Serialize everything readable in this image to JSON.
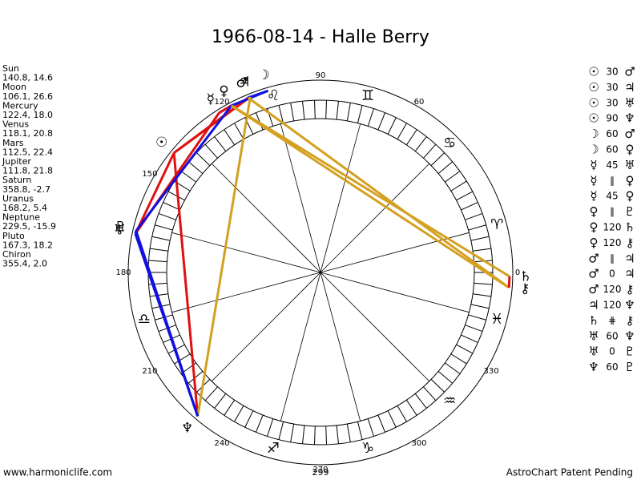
{
  "title": "1966-08-14 - Halle Berry",
  "planets": [
    {
      "name": "Sun",
      "glyph": "☉",
      "position": "140.8, 14.6"
    },
    {
      "name": "Moon",
      "glyph": "☽",
      "position": "106.1, 26.6"
    },
    {
      "name": "Mercury",
      "glyph": "☿",
      "position": "122.4, 18.0"
    },
    {
      "name": "Venus",
      "glyph": "♀",
      "position": "118.1, 20.8"
    },
    {
      "name": "Mars",
      "glyph": "♂",
      "position": "112.5, 22.4"
    },
    {
      "name": "Jupiter",
      "glyph": "♃",
      "position": "111.8, 21.8"
    },
    {
      "name": "Saturn",
      "glyph": "♄",
      "position": "358.8, -2.7"
    },
    {
      "name": "Uranus",
      "glyph": "♅",
      "position": "168.2, 5.4"
    },
    {
      "name": "Neptune",
      "glyph": "♆",
      "position": "229.5, -15.9"
    },
    {
      "name": "Pluto",
      "glyph": "♇",
      "position": "167.3, 18.2"
    },
    {
      "name": "Chiron",
      "glyph": "⚷",
      "position": "355.4, 2.0"
    }
  ],
  "zodiac_signs": [
    "♈",
    "♋",
    "♊",
    "♌",
    null,
    null,
    "♎",
    null,
    "♐",
    "♑",
    "♒",
    "♓"
  ],
  "degree_labels": [
    "0",
    null,
    "60",
    "90",
    "120",
    "150",
    "180",
    "210",
    "240",
    "270",
    "300",
    "330"
  ],
  "bottom_label": "299",
  "aspects": [
    {
      "from": "☉",
      "aspect": "30",
      "to": "♂",
      "color": "#e01010"
    },
    {
      "from": "☉",
      "aspect": "30",
      "to": "♃",
      "color": "#e01010"
    },
    {
      "from": "☉",
      "aspect": "30",
      "to": "♅",
      "color": "#e01010"
    },
    {
      "from": "☉",
      "aspect": "90",
      "to": "♆",
      "color": "#e01010"
    },
    {
      "from": "☽",
      "aspect": "60",
      "to": "♂",
      "color": "#1010e0"
    },
    {
      "from": "☽",
      "aspect": "60",
      "to": "♀",
      "color": "#1010e0"
    },
    {
      "from": "☿",
      "aspect": "45",
      "to": "♅",
      "color": "#e01010"
    },
    {
      "from": "☿",
      "aspect": "∥",
      "to": "♀",
      "color": "#1010e0"
    },
    {
      "from": "☿",
      "aspect": "45",
      "to": "♀",
      "color": "#e01010"
    },
    {
      "from": "♀",
      "aspect": "∥",
      "to": "♇",
      "color": "#1010e0"
    },
    {
      "from": "♀",
      "aspect": "120",
      "to": "♄",
      "color": "#d4a020"
    },
    {
      "from": "♀",
      "aspect": "120",
      "to": "⚷",
      "color": "#d4a020"
    },
    {
      "from": "♂",
      "aspect": "∥",
      "to": "♃",
      "color": "#1010e0"
    },
    {
      "from": "♂",
      "aspect": "0",
      "to": "♃",
      "color": "#1010e0"
    },
    {
      "from": "♂",
      "aspect": "120",
      "to": "⚷",
      "color": "#d4a020"
    },
    {
      "from": "♃",
      "aspect": "120",
      "to": "♆",
      "color": "#d4a020"
    },
    {
      "from": "♄",
      "aspect": "⋕",
      "to": "⚷",
      "color": "#e01010"
    },
    {
      "from": "♅",
      "aspect": "60",
      "to": "♆",
      "color": "#1010e0"
    },
    {
      "from": "♅",
      "aspect": "0",
      "to": "♇",
      "color": "#1010e0"
    },
    {
      "from": "♆",
      "aspect": "60",
      "to": "♇",
      "color": "#1010e0"
    }
  ],
  "footer": {
    "left": "www.harmoniclife.com",
    "right": "AstroChart Patent Pending"
  }
}
